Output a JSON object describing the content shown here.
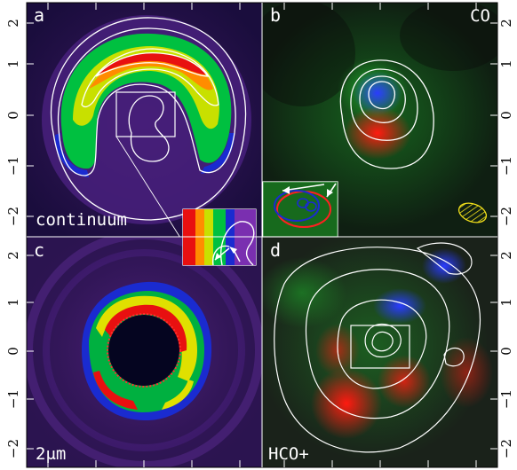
{
  "figure": {
    "y_ticks_top": [
      "2",
      "1",
      "0",
      "−1",
      "−2"
    ],
    "y_ticks_bottom": [
      "2",
      "1",
      "0",
      "−1",
      "−2"
    ],
    "panels": {
      "a": {
        "letter": "a",
        "label": "continuum"
      },
      "b": {
        "letter": "b",
        "label": "CO"
      },
      "c": {
        "letter": "c",
        "label": "2μm"
      },
      "d": {
        "letter": "d",
        "label": "HCO+"
      }
    }
  }
}
